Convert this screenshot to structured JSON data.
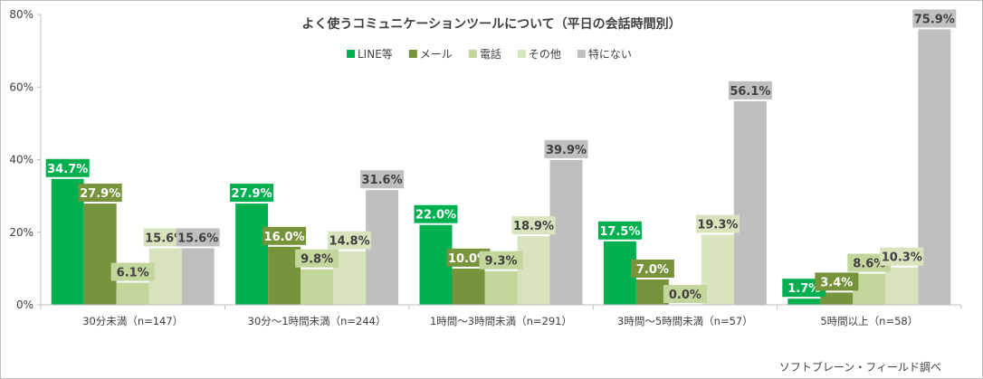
{
  "chart_data": {
    "type": "bar",
    "title": "よく使うコミュニケーションツールについて（平日の会話時間別）",
    "categories": [
      "30分未満（n=147）",
      "30分～1時間未満（n=244）",
      "1時間～3時間未満（n=291）",
      "3時間～5時間未満（n=57）",
      "5時間以上（n=58）"
    ],
    "series": [
      {
        "name": "LINE等",
        "color": "#00b050",
        "values": [
          34.7,
          27.9,
          22.0,
          17.5,
          1.7
        ],
        "labels": [
          "34.7%",
          "27.9%",
          "22.0%",
          "17.5%",
          "1.7%"
        ]
      },
      {
        "name": "メール",
        "color": "#77933c",
        "values": [
          27.9,
          16.0,
          10.0,
          7.0,
          3.4
        ],
        "labels": [
          "27.9%",
          "16.0%",
          "10.0%",
          "7.0%",
          "3.4%"
        ]
      },
      {
        "name": "電話",
        "color": "#c3d69b",
        "values": [
          6.1,
          9.8,
          9.3,
          0.0,
          8.6
        ],
        "labels": [
          "6.1%",
          "9.8%",
          "9.3%",
          "0.0%",
          "8.6%"
        ]
      },
      {
        "name": "その他",
        "color": "#d7e4bd",
        "values": [
          15.6,
          14.8,
          18.9,
          19.3,
          10.3
        ],
        "labels": [
          "15.6%",
          "14.8%",
          "18.9%",
          "19.3%",
          "10.3%"
        ]
      },
      {
        "name": "特にない",
        "color": "#bfbfbf",
        "values": [
          15.6,
          31.6,
          39.9,
          56.1,
          75.9
        ],
        "labels": [
          "15.6%",
          "31.6%",
          "39.9%",
          "56.1%",
          "75.9%"
        ]
      }
    ],
    "ylim": [
      0,
      80
    ],
    "yticks": [
      0,
      20,
      40,
      60,
      80
    ],
    "ytick_labels": [
      "0%",
      "20%",
      "40%",
      "60%",
      "80%"
    ],
    "legend_position": "top-center",
    "grid": false
  },
  "source": "ソフトブレーン・フィールド調べ"
}
